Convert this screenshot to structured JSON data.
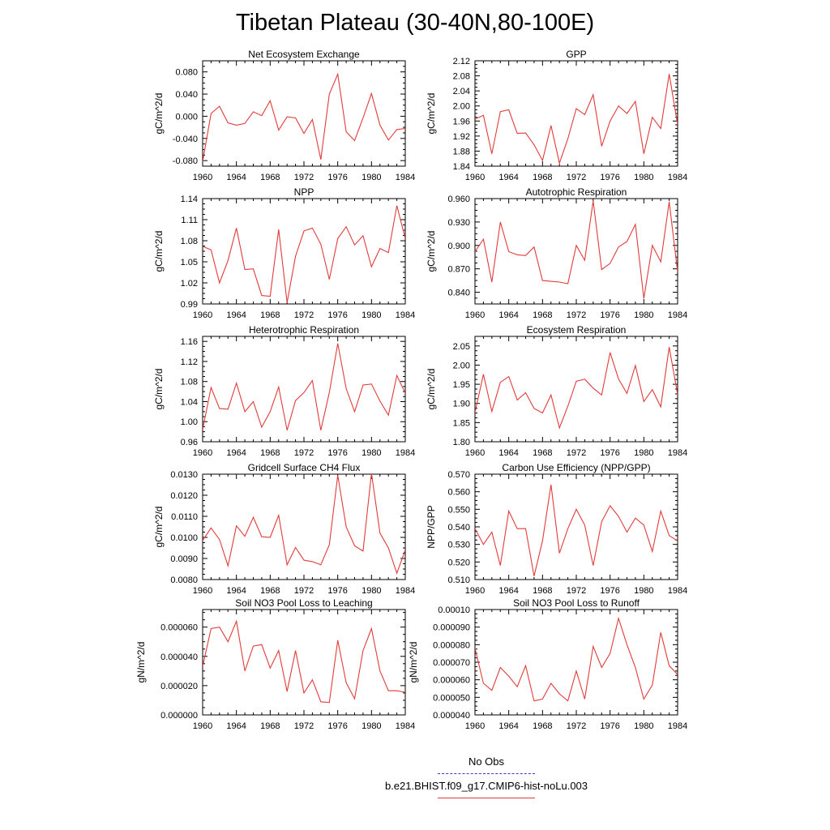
{
  "page": {
    "title": "Tibetan Plateau (30-40N,80-100E)"
  },
  "legend": {
    "obs_label": "No Obs",
    "model_label": "b.e21.BHIST.f09_g17.CMIP6-hist-noLu.003",
    "model_color": "#e23b3b",
    "obs_color": "#3b3bcc"
  },
  "chart_data": [
    {
      "type": "line",
      "title": "Net Ecosystem Exchange",
      "ylabel": "gC/m^2/d",
      "xlim": [
        1960,
        1984
      ],
      "ylim": [
        -0.09,
        0.1
      ],
      "x_ticks": [
        "1960",
        "1964",
        "1968",
        "1972",
        "1976",
        "1980",
        "1984"
      ],
      "y_ticks": [
        "-0.080",
        "-0.040",
        "0.000",
        "0.040",
        "0.080"
      ],
      "x": [
        1960,
        1961,
        1962,
        1963,
        1964,
        1965,
        1966,
        1967,
        1968,
        1969,
        1970,
        1971,
        1972,
        1973,
        1974,
        1975,
        1976,
        1977,
        1978,
        1979,
        1980,
        1981,
        1982,
        1983,
        1984
      ],
      "series": [
        {
          "values": [
            -0.082,
            0.005,
            0.018,
            -0.012,
            -0.016,
            -0.013,
            0.008,
            0.001,
            0.028,
            -0.025,
            -0.001,
            -0.003,
            -0.031,
            -0.006,
            -0.078,
            0.04,
            0.076,
            -0.028,
            -0.044,
            -0.003,
            0.041,
            -0.016,
            -0.043,
            -0.024,
            -0.022
          ]
        }
      ]
    },
    {
      "type": "line",
      "title": "GPP",
      "ylabel": "gC/m^2/d",
      "xlim": [
        1960,
        1984
      ],
      "ylim": [
        1.84,
        2.12
      ],
      "x_ticks": [
        "1960",
        "1964",
        "1968",
        "1972",
        "1976",
        "1980",
        "1984"
      ],
      "y_ticks": [
        "1.84",
        "1.88",
        "1.92",
        "1.96",
        "2.00",
        "2.04",
        "2.08",
        "2.12"
      ],
      "x": [
        1960,
        1961,
        1962,
        1963,
        1964,
        1965,
        1966,
        1967,
        1968,
        1969,
        1970,
        1971,
        1972,
        1973,
        1974,
        1975,
        1976,
        1977,
        1978,
        1979,
        1980,
        1981,
        1982,
        1983,
        1984
      ],
      "series": [
        {
          "values": [
            1.965,
            1.975,
            1.873,
            1.985,
            1.99,
            1.927,
            1.928,
            1.897,
            1.855,
            1.948,
            1.848,
            1.913,
            1.993,
            1.977,
            2.03,
            1.893,
            1.96,
            2.0,
            1.98,
            2.012,
            1.873,
            1.97,
            1.94,
            2.085,
            1.95
          ]
        }
      ]
    },
    {
      "type": "line",
      "title": "NPP",
      "ylabel": "gC/m^2/d",
      "xlim": [
        1960,
        1984
      ],
      "ylim": [
        0.99,
        1.14
      ],
      "x_ticks": [
        "1960",
        "1964",
        "1968",
        "1972",
        "1976",
        "1980",
        "1984"
      ],
      "y_ticks": [
        "0.99",
        "1.02",
        "1.05",
        "1.08",
        "1.11",
        "1.14"
      ],
      "x": [
        1960,
        1961,
        1962,
        1963,
        1964,
        1965,
        1966,
        1967,
        1968,
        1969,
        1970,
        1971,
        1972,
        1973,
        1974,
        1975,
        1976,
        1977,
        1978,
        1979,
        1980,
        1981,
        1982,
        1983,
        1984
      ],
      "series": [
        {
          "values": [
            1.072,
            1.067,
            1.02,
            1.052,
            1.098,
            1.039,
            1.04,
            1.002,
            1.001,
            1.096,
            0.992,
            1.058,
            1.094,
            1.098,
            1.075,
            1.025,
            1.083,
            1.1,
            1.074,
            1.087,
            1.043,
            1.069,
            1.063,
            1.13,
            1.083
          ]
        }
      ]
    },
    {
      "type": "line",
      "title": "Autotrophic Respiration",
      "ylabel": "gC/m^2/d",
      "xlim": [
        1960,
        1984
      ],
      "ylim": [
        0.825,
        0.96
      ],
      "x_ticks": [
        "1960",
        "1964",
        "1968",
        "1972",
        "1976",
        "1980",
        "1984"
      ],
      "y_ticks": [
        "0.840",
        "0.870",
        "0.900",
        "0.930",
        "0.960"
      ],
      "x": [
        1960,
        1961,
        1962,
        1963,
        1964,
        1965,
        1966,
        1967,
        1968,
        1969,
        1970,
        1971,
        1972,
        1973,
        1974,
        1975,
        1976,
        1977,
        1978,
        1979,
        1980,
        1981,
        1982,
        1983,
        1984
      ],
      "series": [
        {
          "values": [
            0.892,
            0.908,
            0.853,
            0.93,
            0.892,
            0.888,
            0.887,
            0.898,
            0.855,
            0.854,
            0.853,
            0.851,
            0.9,
            0.881,
            0.957,
            0.869,
            0.877,
            0.898,
            0.905,
            0.927,
            0.832,
            0.9,
            0.879,
            0.956,
            0.866
          ]
        }
      ]
    },
    {
      "type": "line",
      "title": "Heterotrophic Respiration",
      "ylabel": "gC/m^2/d",
      "xlim": [
        1960,
        1984
      ],
      "ylim": [
        0.96,
        1.17
      ],
      "x_ticks": [
        "1960",
        "1964",
        "1968",
        "1972",
        "1976",
        "1980",
        "1984"
      ],
      "y_ticks": [
        "0.96",
        "1.00",
        "1.04",
        "1.08",
        "1.12",
        "1.16"
      ],
      "x": [
        1960,
        1961,
        1962,
        1963,
        1964,
        1965,
        1966,
        1967,
        1968,
        1969,
        1970,
        1971,
        1972,
        1973,
        1974,
        1975,
        1976,
        1977,
        1978,
        1979,
        1980,
        1981,
        1982,
        1983,
        1984
      ],
      "series": [
        {
          "values": [
            0.984,
            1.068,
            1.026,
            1.025,
            1.077,
            1.02,
            1.04,
            0.989,
            1.02,
            1.069,
            0.983,
            1.042,
            1.058,
            1.082,
            0.983,
            1.058,
            1.156,
            1.066,
            1.02,
            1.073,
            1.075,
            1.041,
            1.013,
            1.092,
            1.057
          ]
        }
      ]
    },
    {
      "type": "line",
      "title": "Ecosystem Respiration",
      "ylabel": "gC/m^2/d",
      "xlim": [
        1960,
        1984
      ],
      "ylim": [
        1.8,
        2.075
      ],
      "x_ticks": [
        "1960",
        "1964",
        "1968",
        "1972",
        "1976",
        "1980",
        "1984"
      ],
      "y_ticks": [
        "1.80",
        "1.85",
        "1.90",
        "1.95",
        "2.00",
        "2.05"
      ],
      "x": [
        1960,
        1961,
        1962,
        1963,
        1964,
        1965,
        1966,
        1967,
        1968,
        1969,
        1970,
        1971,
        1972,
        1973,
        1974,
        1975,
        1976,
        1977,
        1978,
        1979,
        1980,
        1981,
        1982,
        1983,
        1984
      ],
      "series": [
        {
          "values": [
            1.876,
            1.976,
            1.879,
            1.955,
            1.97,
            1.909,
            1.928,
            1.887,
            1.875,
            1.922,
            1.836,
            1.893,
            1.958,
            1.963,
            1.94,
            1.922,
            2.033,
            1.964,
            1.926,
            1.999,
            1.905,
            1.936,
            1.891,
            2.047,
            1.923
          ]
        }
      ]
    },
    {
      "type": "line",
      "title": "Gridcell Surface CH4 Flux",
      "ylabel": "gC/m^2/d",
      "xlim": [
        1960,
        1984
      ],
      "ylim": [
        0.008,
        0.013
      ],
      "x_ticks": [
        "1960",
        "1964",
        "1968",
        "1972",
        "1976",
        "1980",
        "1984"
      ],
      "y_ticks": [
        "0.0080",
        "0.0090",
        "0.0100",
        "0.0110",
        "0.0120",
        "0.0130"
      ],
      "x": [
        1960,
        1961,
        1962,
        1963,
        1964,
        1965,
        1966,
        1967,
        1968,
        1969,
        1970,
        1971,
        1972,
        1973,
        1974,
        1975,
        1976,
        1977,
        1978,
        1979,
        1980,
        1981,
        1982,
        1983,
        1984
      ],
      "series": [
        {
          "values": [
            0.00985,
            0.01045,
            0.0099,
            0.00865,
            0.01055,
            0.01005,
            0.01095,
            0.01003,
            0.01,
            0.01105,
            0.0087,
            0.00952,
            0.00892,
            0.00885,
            0.0087,
            0.00965,
            0.01295,
            0.0105,
            0.0096,
            0.00935,
            0.01305,
            0.0102,
            0.0095,
            0.0083,
            0.0094
          ]
        }
      ]
    },
    {
      "type": "line",
      "title": "Carbon Use Efficiency (NPP/GPP)",
      "ylabel": "NPP/GPP",
      "xlim": [
        1960,
        1984
      ],
      "ylim": [
        0.51,
        0.57
      ],
      "x_ticks": [
        "1960",
        "1964",
        "1968",
        "1972",
        "1976",
        "1980",
        "1984"
      ],
      "y_ticks": [
        "0.510",
        "0.520",
        "0.530",
        "0.540",
        "0.550",
        "0.560",
        "0.570"
      ],
      "x": [
        1960,
        1961,
        1962,
        1963,
        1964,
        1965,
        1966,
        1967,
        1968,
        1969,
        1970,
        1971,
        1972,
        1973,
        1974,
        1975,
        1976,
        1977,
        1978,
        1979,
        1980,
        1981,
        1982,
        1983,
        1984
      ],
      "series": [
        {
          "values": [
            0.539,
            0.53,
            0.537,
            0.518,
            0.549,
            0.539,
            0.539,
            0.512,
            0.532,
            0.564,
            0.525,
            0.539,
            0.55,
            0.541,
            0.518,
            0.543,
            0.552,
            0.546,
            0.537,
            0.545,
            0.541,
            0.526,
            0.549,
            0.535,
            0.532
          ]
        }
      ]
    },
    {
      "type": "line",
      "title": "Soil NO3 Pool Loss to Leaching",
      "ylabel": "gN/m^2/d",
      "xlim": [
        1960,
        1984
      ],
      "ylim": [
        0.0,
        7.2e-05
      ],
      "x_ticks": [
        "1960",
        "1964",
        "1968",
        "1972",
        "1976",
        "1980",
        "1984"
      ],
      "y_ticks": [
        "0.000000",
        "0.000020",
        "0.000040",
        "0.000060"
      ],
      "x": [
        1960,
        1961,
        1962,
        1963,
        1964,
        1965,
        1966,
        1967,
        1968,
        1969,
        1970,
        1971,
        1972,
        1973,
        1974,
        1975,
        1976,
        1977,
        1978,
        1979,
        1980,
        1981,
        1982,
        1983,
        1984
      ],
      "series": [
        {
          "values": [
            3.3e-05,
            5.9e-05,
            6e-05,
            5e-05,
            6.4e-05,
            3e-05,
            4.7e-05,
            4.8e-05,
            3.2e-05,
            4.4e-05,
            1.6e-05,
            4.4e-05,
            1.5e-05,
            2.4e-05,
            9e-06,
            8.5e-06,
            5.1e-05,
            2.2e-05,
            1.1e-05,
            4.4e-05,
            5.9e-05,
            3e-05,
            1.65e-05,
            1.65e-05,
            1.55e-05
          ]
        }
      ]
    },
    {
      "type": "line",
      "title": "Soil NO3 Pool Loss to Runoff",
      "ylabel": "gN/m^2/d",
      "xlim": [
        1960,
        1984
      ],
      "ylim": [
        4e-05,
        0.0001
      ],
      "x_ticks": [
        "1960",
        "1964",
        "1968",
        "1972",
        "1976",
        "1980",
        "1984"
      ],
      "y_ticks": [
        "0.000040",
        "0.000050",
        "0.000060",
        "0.000070",
        "0.000080",
        "0.000090",
        "0.00010"
      ],
      "x": [
        1960,
        1961,
        1962,
        1963,
        1964,
        1965,
        1966,
        1967,
        1968,
        1969,
        1970,
        1971,
        1972,
        1973,
        1974,
        1975,
        1976,
        1977,
        1978,
        1979,
        1980,
        1981,
        1982,
        1983,
        1984
      ],
      "series": [
        {
          "values": [
            7.8e-05,
            5.8e-05,
            5.4e-05,
            6.7e-05,
            6.2e-05,
            5.6e-05,
            6.8e-05,
            4.8e-05,
            4.9e-05,
            5.8e-05,
            5.2e-05,
            4.8e-05,
            6.5e-05,
            4.9e-05,
            7.9e-05,
            6.7e-05,
            7.5e-05,
            9.5e-05,
            8e-05,
            6.7e-05,
            4.9e-05,
            5.7e-05,
            8.7e-05,
            6.8e-05,
            6.3e-05
          ]
        }
      ]
    }
  ]
}
